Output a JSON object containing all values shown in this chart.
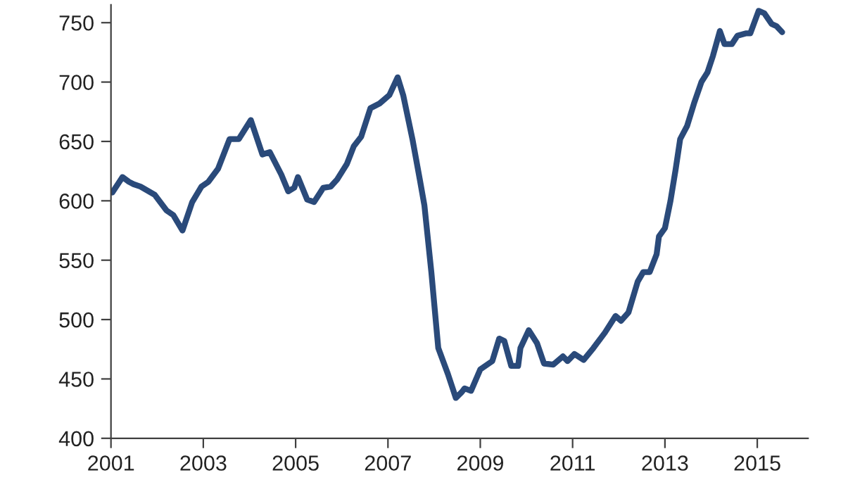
{
  "chart_data": {
    "type": "line",
    "xlim": [
      2001,
      2016.1
    ],
    "ylim": [
      400,
      765
    ],
    "xticks": [
      2001,
      2003,
      2005,
      2007,
      2009,
      2011,
      2013,
      2015
    ],
    "yticks": [
      400,
      450,
      500,
      550,
      600,
      650,
      700,
      750
    ],
    "grid": false,
    "legend": false,
    "line_style": "solid",
    "marker": "none",
    "series": [
      {
        "color": "#2a4a7a",
        "x": [
          2001.03,
          2001.25,
          2001.39,
          2001.49,
          2001.64,
          2001.95,
          2002.2,
          2002.35,
          2002.55,
          2002.76,
          2002.96,
          2003.11,
          2003.32,
          2003.57,
          2003.77,
          2004.03,
          2004.28,
          2004.44,
          2004.69,
          2004.84,
          2004.97,
          2005.05,
          2005.25,
          2005.4,
          2005.6,
          2005.76,
          2005.9,
          2006.11,
          2006.26,
          2006.42,
          2006.62,
          2006.82,
          2007.03,
          2007.21,
          2007.33,
          2007.53,
          2007.69,
          2007.79,
          2007.94,
          2008.09,
          2008.3,
          2008.47,
          2008.6,
          2008.66,
          2008.8,
          2009.0,
          2009.26,
          2009.41,
          2009.52,
          2009.67,
          2009.82,
          2009.87,
          2010.05,
          2010.23,
          2010.38,
          2010.58,
          2010.79,
          2010.89,
          2011.04,
          2011.24,
          2011.45,
          2011.7,
          2011.93,
          2012.05,
          2012.21,
          2012.41,
          2012.53,
          2012.67,
          2012.82,
          2012.87,
          2013.0,
          2013.12,
          2013.23,
          2013.33,
          2013.48,
          2013.63,
          2013.79,
          2013.92,
          2014.04,
          2014.19,
          2014.29,
          2014.45,
          2014.57,
          2014.75,
          2014.85,
          2015.03,
          2015.15,
          2015.31,
          2015.42,
          2015.54
        ],
        "values": [
          607,
          620,
          616,
          614,
          612,
          605,
          592,
          588,
          575,
          599,
          612,
          616,
          627,
          652,
          652,
          668,
          639,
          641,
          622,
          608,
          611,
          620,
          601,
          599,
          611,
          612,
          618,
          631,
          646,
          654,
          678,
          682,
          689,
          704,
          689,
          652,
          618,
          596,
          540,
          476,
          454,
          434,
          439,
          442,
          440,
          458,
          465,
          484,
          482,
          461,
          461,
          476,
          491,
          480,
          463,
          462,
          469,
          465,
          471,
          466,
          476,
          489,
          503,
          499,
          506,
          532,
          540,
          540,
          555,
          570,
          577,
          600,
          626,
          652,
          663,
          682,
          700,
          708,
          722,
          743,
          732,
          732,
          739,
          741,
          741,
          760,
          758,
          749,
          747,
          742
        ]
      }
    ]
  }
}
